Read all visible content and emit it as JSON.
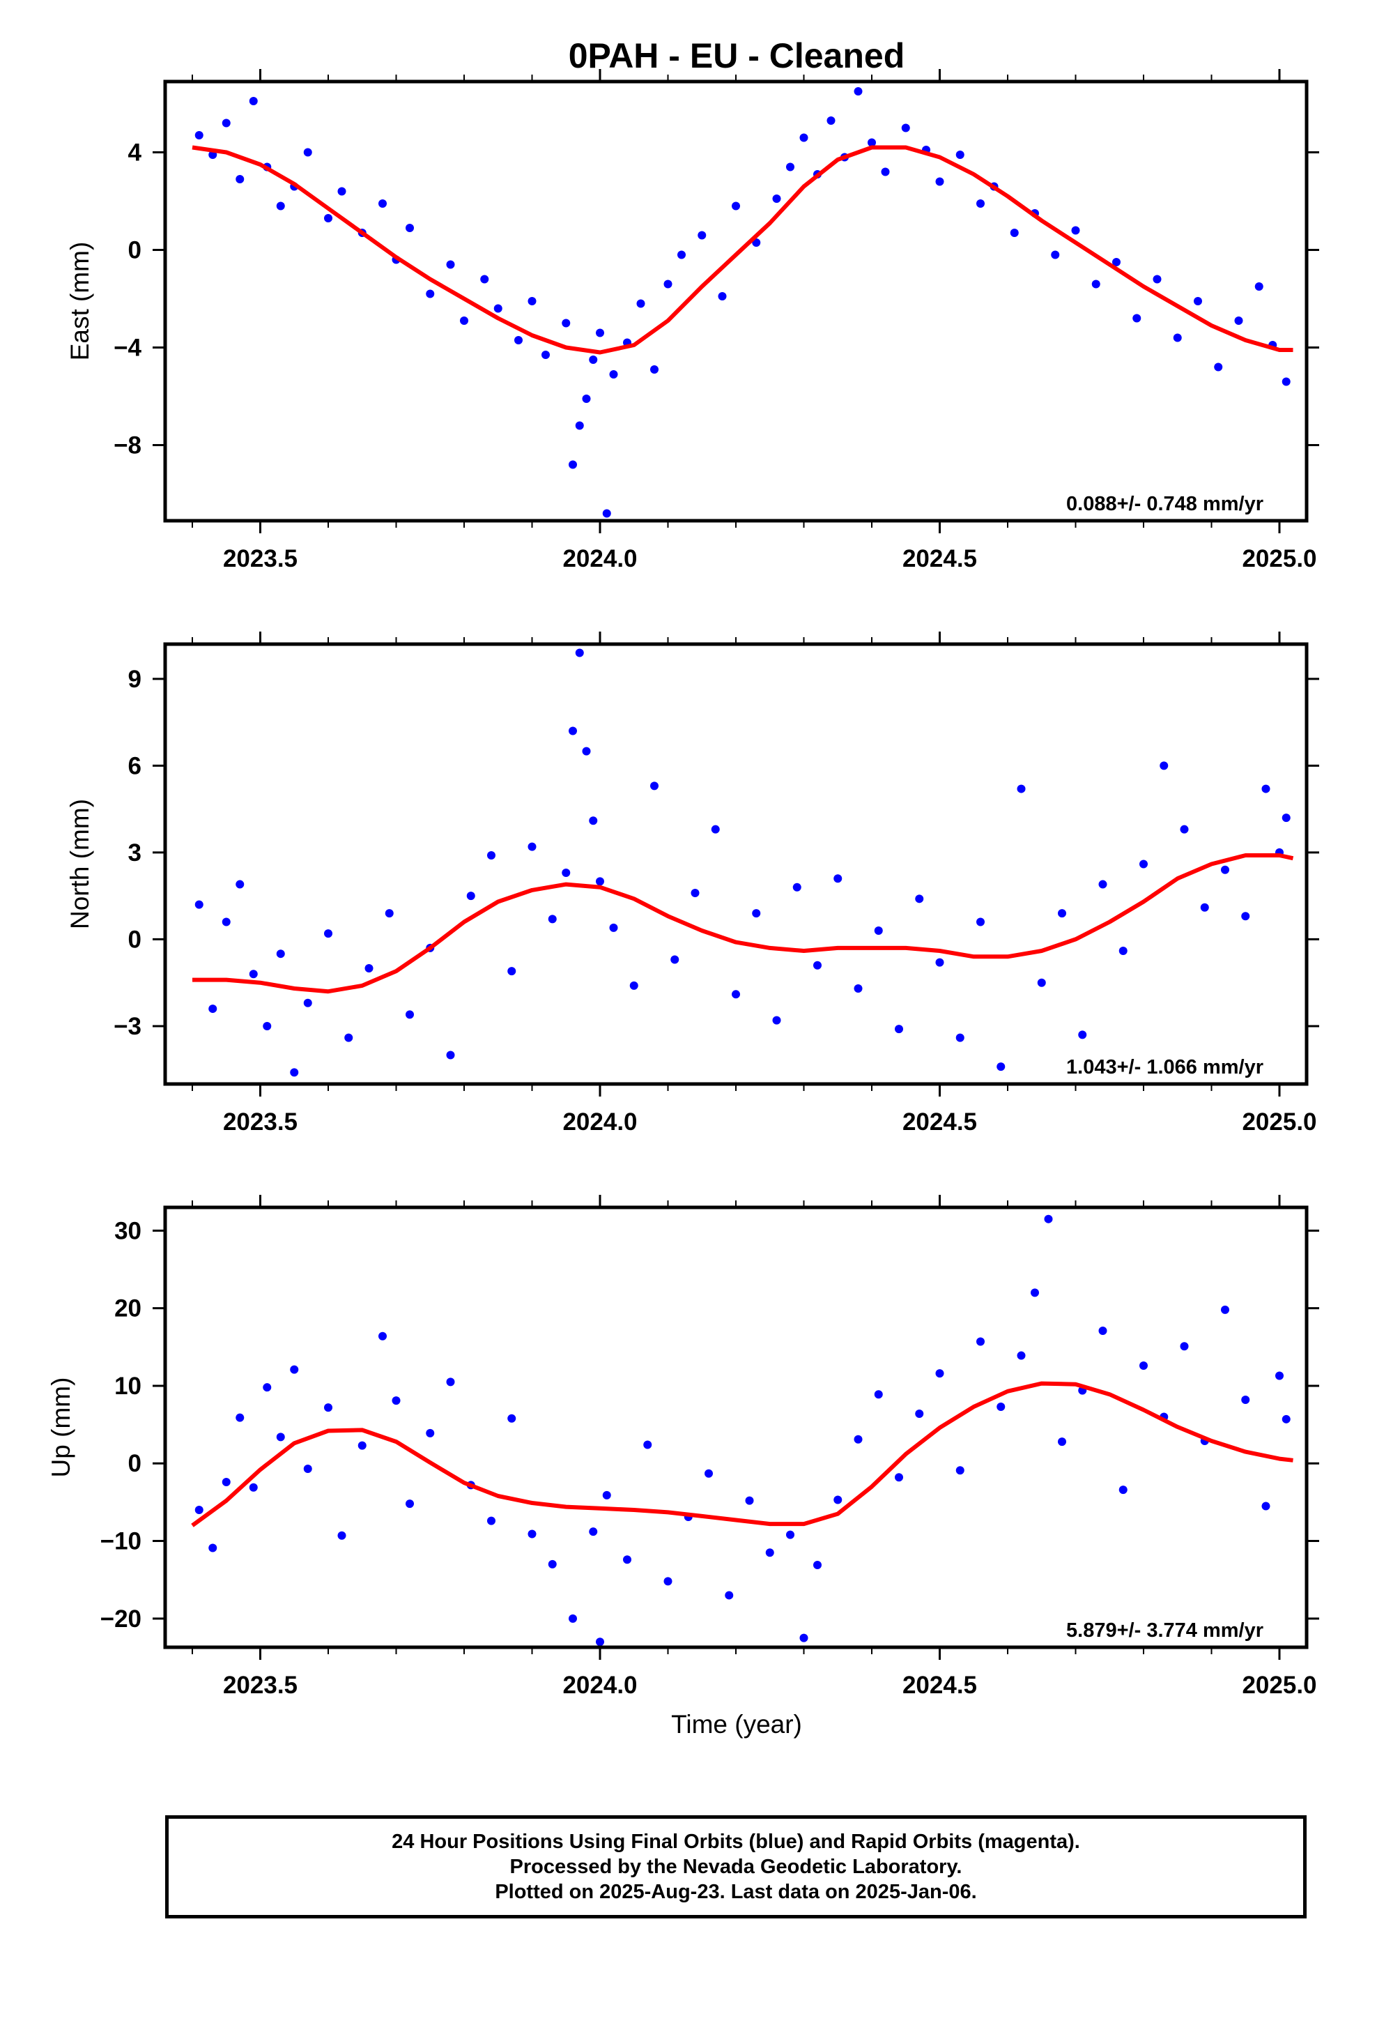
{
  "title": "0PAH  - EU - Cleaned",
  "xlabel": "Time (year)",
  "footer": {
    "line1": "24 Hour Positions Using Final Orbits (blue) and Rapid Orbits (magenta).",
    "line2": "Processed by the Nevada Geodetic Laboratory.",
    "line3": "Plotted on 2025-Aug-23. Last data on 2025-Jan-06."
  },
  "colors": {
    "points": "#0000ff",
    "fit": "#ff0000",
    "frame": "#000000"
  },
  "chart_data": [
    {
      "type": "scatter",
      "ylabel": "East (mm)",
      "rate": "0.088+/- 0.748 mm/yr",
      "xlim": [
        2023.36,
        2025.04
      ],
      "ylim": [
        -11.1,
        6.9
      ],
      "yticks": [
        4,
        0,
        -4,
        -8
      ],
      "xticks": [
        "2023.5",
        "2024.0",
        "2024.5",
        "2025.0"
      ],
      "series": [
        {
          "x": [
            2023.41,
            2023.43,
            2023.45,
            2023.47,
            2023.49,
            2023.51,
            2023.53,
            2023.55,
            2023.57,
            2023.6,
            2023.62,
            2023.65,
            2023.68,
            2023.7,
            2023.72,
            2023.75,
            2023.78,
            2023.8,
            2023.83,
            2023.85,
            2023.88,
            2023.9,
            2023.92,
            2023.95,
            2023.96,
            2023.97,
            2023.98,
            2023.99,
            2024.0,
            2024.01,
            2024.02,
            2024.04,
            2024.06,
            2024.08,
            2024.1,
            2024.12,
            2024.15,
            2024.18,
            2024.2,
            2024.23,
            2024.26,
            2024.28,
            2024.3,
            2024.32,
            2024.34,
            2024.36,
            2024.38,
            2024.4,
            2024.42,
            2024.45,
            2024.48,
            2024.5,
            2024.53,
            2024.56,
            2024.58,
            2024.61,
            2024.64,
            2024.67,
            2024.7,
            2024.73,
            2024.76,
            2024.79,
            2024.82,
            2024.85,
            2024.88,
            2024.91,
            2024.94,
            2024.97,
            2024.99,
            2025.01
          ],
          "y": [
            4.7,
            3.9,
            5.2,
            2.9,
            6.1,
            3.4,
            1.8,
            2.6,
            4.0,
            1.3,
            2.4,
            0.7,
            1.9,
            -0.4,
            0.9,
            -1.8,
            -0.6,
            -2.9,
            -1.2,
            -2.4,
            -3.7,
            -2.1,
            -4.3,
            -3.0,
            -8.8,
            -7.2,
            -6.1,
            -4.5,
            -3.4,
            -10.8,
            -5.1,
            -3.8,
            -2.2,
            -4.9,
            -1.4,
            -0.2,
            0.6,
            -1.9,
            1.8,
            0.3,
            2.1,
            3.4,
            4.6,
            3.1,
            5.3,
            3.8,
            6.5,
            4.4,
            3.2,
            5.0,
            4.1,
            2.8,
            3.9,
            1.9,
            2.6,
            0.7,
            1.5,
            -0.2,
            0.8,
            -1.4,
            -0.5,
            -2.8,
            -1.2,
            -3.6,
            -2.1,
            -4.8,
            -2.9,
            -1.5,
            -3.9,
            -5.4
          ]
        }
      ],
      "fit": {
        "x": [
          2023.4,
          2023.45,
          2023.5,
          2023.55,
          2023.6,
          2023.65,
          2023.7,
          2023.75,
          2023.8,
          2023.85,
          2023.9,
          2023.95,
          2024.0,
          2024.05,
          2024.1,
          2024.15,
          2024.2,
          2024.25,
          2024.3,
          2024.35,
          2024.4,
          2024.45,
          2024.5,
          2024.55,
          2024.6,
          2024.65,
          2024.7,
          2024.75,
          2024.8,
          2024.85,
          2024.9,
          2024.95,
          2025.0,
          2025.02
        ],
        "y": [
          4.2,
          4.0,
          3.5,
          2.7,
          1.7,
          0.7,
          -0.3,
          -1.2,
          -2.0,
          -2.8,
          -3.5,
          -4.0,
          -4.2,
          -3.9,
          -2.9,
          -1.5,
          -0.2,
          1.1,
          2.6,
          3.7,
          4.2,
          4.2,
          3.8,
          3.1,
          2.2,
          1.2,
          0.3,
          -0.6,
          -1.5,
          -2.3,
          -3.1,
          -3.7,
          -4.1,
          -4.1
        ]
      }
    },
    {
      "type": "scatter",
      "ylabel": "North (mm)",
      "rate": "1.043+/- 1.066 mm/yr",
      "xlim": [
        2023.36,
        2025.04
      ],
      "ylim": [
        -5.0,
        10.2
      ],
      "yticks": [
        9,
        6,
        3,
        0,
        -3
      ],
      "xticks": [
        "2023.5",
        "2024.0",
        "2024.5",
        "2025.0"
      ],
      "series": [
        {
          "x": [
            2023.41,
            2023.43,
            2023.45,
            2023.47,
            2023.49,
            2023.51,
            2023.53,
            2023.55,
            2023.57,
            2023.6,
            2023.63,
            2023.66,
            2023.69,
            2023.72,
            2023.75,
            2023.78,
            2023.81,
            2023.84,
            2023.87,
            2023.9,
            2023.93,
            2023.95,
            2023.96,
            2023.97,
            2023.98,
            2023.99,
            2024.0,
            2024.02,
            2024.05,
            2024.08,
            2024.11,
            2024.14,
            2024.17,
            2024.2,
            2024.23,
            2024.26,
            2024.29,
            2024.32,
            2024.35,
            2024.38,
            2024.41,
            2024.44,
            2024.47,
            2024.5,
            2024.53,
            2024.56,
            2024.59,
            2024.62,
            2024.65,
            2024.68,
            2024.71,
            2024.74,
            2024.77,
            2024.8,
            2024.83,
            2024.86,
            2024.89,
            2024.92,
            2024.95,
            2024.98,
            2025.0,
            2025.01
          ],
          "y": [
            1.2,
            -2.4,
            0.6,
            1.9,
            -1.2,
            -3.0,
            -0.5,
            -4.6,
            -2.2,
            0.2,
            -3.4,
            -1.0,
            0.9,
            -2.6,
            -0.3,
            -4.0,
            1.5,
            2.9,
            -1.1,
            3.2,
            0.7,
            2.3,
            7.2,
            9.9,
            6.5,
            4.1,
            2.0,
            0.4,
            -1.6,
            5.3,
            -0.7,
            1.6,
            3.8,
            -1.9,
            0.9,
            -2.8,
            1.8,
            -0.9,
            2.1,
            -1.7,
            0.3,
            -3.1,
            1.4,
            -0.8,
            -3.4,
            0.6,
            -4.4,
            5.2,
            -1.5,
            0.9,
            -3.3,
            1.9,
            -0.4,
            2.6,
            6.0,
            3.8,
            1.1,
            2.4,
            0.8,
            5.2,
            3.0,
            4.2
          ]
        }
      ],
      "fit": {
        "x": [
          2023.4,
          2023.45,
          2023.5,
          2023.55,
          2023.6,
          2023.65,
          2023.7,
          2023.75,
          2023.8,
          2023.85,
          2023.9,
          2023.95,
          2024.0,
          2024.05,
          2024.1,
          2024.15,
          2024.2,
          2024.25,
          2024.3,
          2024.35,
          2024.4,
          2024.45,
          2024.5,
          2024.55,
          2024.6,
          2024.65,
          2024.7,
          2024.75,
          2024.8,
          2024.85,
          2024.9,
          2024.95,
          2025.0,
          2025.02
        ],
        "y": [
          -1.4,
          -1.4,
          -1.5,
          -1.7,
          -1.8,
          -1.6,
          -1.1,
          -0.3,
          0.6,
          1.3,
          1.7,
          1.9,
          1.8,
          1.4,
          0.8,
          0.3,
          -0.1,
          -0.3,
          -0.4,
          -0.3,
          -0.3,
          -0.3,
          -0.4,
          -0.6,
          -0.6,
          -0.4,
          0.0,
          0.6,
          1.3,
          2.1,
          2.6,
          2.9,
          2.9,
          2.8
        ]
      }
    },
    {
      "type": "scatter",
      "ylabel": "Up (mm)",
      "rate": "5.879+/- 3.774 mm/yr",
      "xlim": [
        2023.36,
        2025.04
      ],
      "ylim": [
        -23.7,
        33.0
      ],
      "yticks": [
        30,
        20,
        10,
        0,
        -10,
        -20
      ],
      "xticks": [
        "2023.5",
        "2024.0",
        "2024.5",
        "2025.0"
      ],
      "series": [
        {
          "x": [
            2023.41,
            2023.43,
            2023.45,
            2023.47,
            2023.49,
            2023.51,
            2023.53,
            2023.55,
            2023.57,
            2023.6,
            2023.62,
            2023.65,
            2023.68,
            2023.7,
            2023.72,
            2023.75,
            2023.78,
            2023.81,
            2023.84,
            2023.87,
            2023.9,
            2023.93,
            2023.96,
            2023.99,
            2024.0,
            2024.01,
            2024.04,
            2024.07,
            2024.1,
            2024.13,
            2024.16,
            2024.19,
            2024.22,
            2024.25,
            2024.28,
            2024.3,
            2024.32,
            2024.35,
            2024.38,
            2024.41,
            2024.44,
            2024.47,
            2024.5,
            2024.53,
            2024.56,
            2024.59,
            2024.62,
            2024.64,
            2024.66,
            2024.68,
            2024.71,
            2024.74,
            2024.77,
            2024.8,
            2024.83,
            2024.86,
            2024.89,
            2024.92,
            2024.95,
            2024.98,
            2025.0,
            2025.01
          ],
          "y": [
            -6.0,
            -10.9,
            -2.4,
            5.9,
            -3.1,
            9.8,
            3.4,
            12.1,
            -0.7,
            7.2,
            -9.3,
            2.3,
            16.4,
            8.1,
            -5.2,
            3.9,
            10.5,
            -2.8,
            -7.4,
            5.8,
            -9.1,
            -13.0,
            -20.0,
            -8.8,
            -23.0,
            -4.1,
            -12.4,
            2.4,
            -15.2,
            -6.9,
            -1.3,
            -17.0,
            -4.8,
            -11.5,
            -9.2,
            -22.5,
            -13.1,
            -4.7,
            3.1,
            8.9,
            -1.8,
            6.4,
            11.6,
            -0.9,
            15.7,
            7.3,
            13.9,
            22.0,
            31.5,
            2.8,
            9.4,
            17.1,
            -3.4,
            12.6,
            6.0,
            15.1,
            2.9,
            19.8,
            8.2,
            -5.5,
            11.3,
            5.7
          ]
        }
      ],
      "fit": {
        "x": [
          2023.4,
          2023.45,
          2023.5,
          2023.55,
          2023.6,
          2023.65,
          2023.7,
          2023.75,
          2023.8,
          2023.85,
          2023.9,
          2023.95,
          2024.0,
          2024.05,
          2024.1,
          2024.15,
          2024.2,
          2024.25,
          2024.3,
          2024.35,
          2024.4,
          2024.45,
          2024.5,
          2024.55,
          2024.6,
          2024.65,
          2024.7,
          2024.75,
          2024.8,
          2024.85,
          2024.9,
          2024.95,
          2025.0,
          2025.02
        ],
        "y": [
          -8.0,
          -4.8,
          -0.8,
          2.6,
          4.2,
          4.3,
          2.8,
          0.1,
          -2.5,
          -4.2,
          -5.1,
          -5.6,
          -5.8,
          -6.0,
          -6.3,
          -6.8,
          -7.3,
          -7.8,
          -7.8,
          -6.5,
          -3.0,
          1.2,
          4.6,
          7.3,
          9.3,
          10.3,
          10.2,
          8.9,
          6.9,
          4.7,
          2.9,
          1.5,
          0.6,
          0.4
        ]
      }
    }
  ]
}
